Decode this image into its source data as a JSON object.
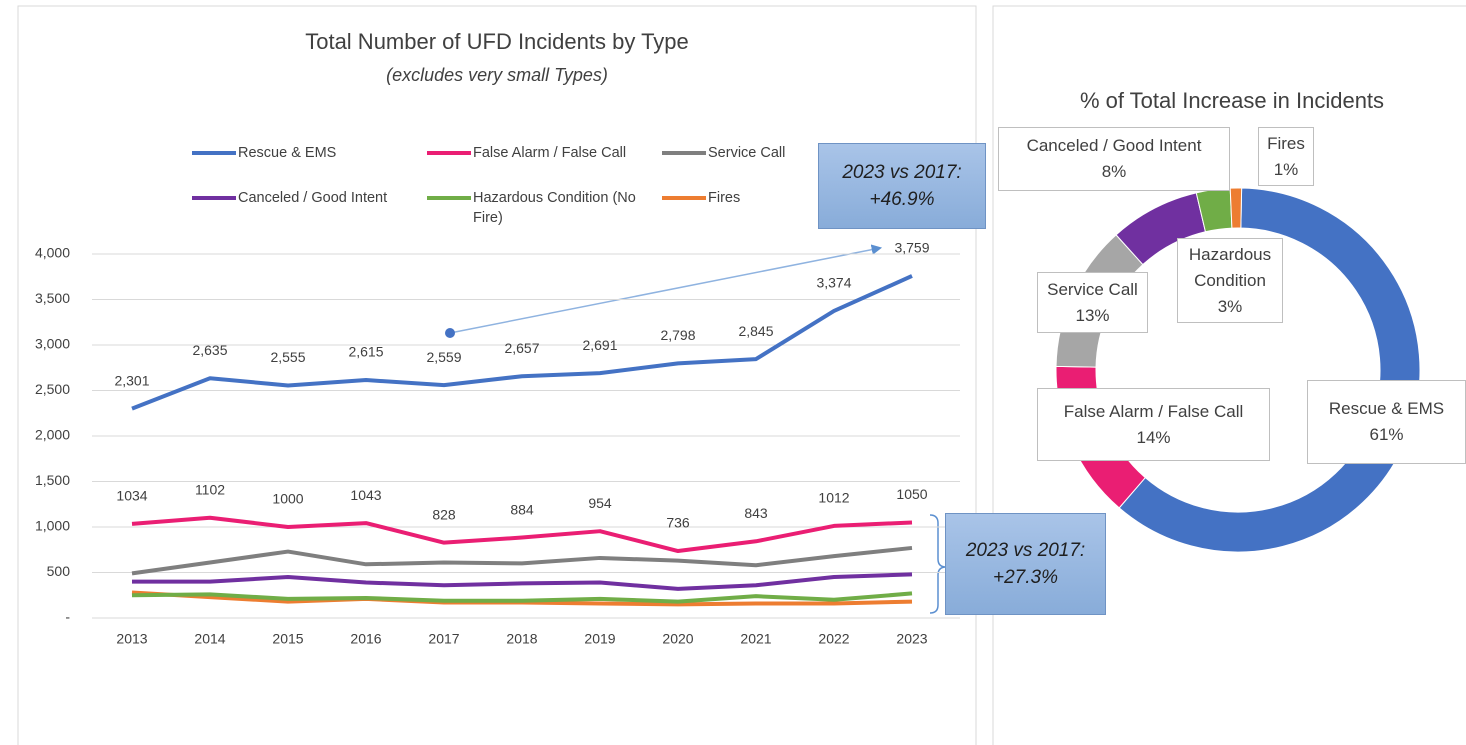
{
  "chart_data": [
    {
      "type": "line",
      "title": "Total Number of UFD Incidents by Type",
      "subtitle": "(excludes very small Types)",
      "categories": [
        "2013",
        "2014",
        "2015",
        "2016",
        "2017",
        "2018",
        "2019",
        "2020",
        "2021",
        "2022",
        "2023"
      ],
      "ylim": [
        0,
        4000
      ],
      "yticks": [
        {
          "value": 0,
          "label": "-"
        },
        500,
        {
          "value": 1000,
          "label": "1,000"
        },
        {
          "value": 1500,
          "label": "1,500"
        },
        {
          "value": 2000,
          "label": "2,000"
        },
        {
          "value": 2500,
          "label": "2,500"
        },
        {
          "value": 3000,
          "label": "3,000"
        },
        {
          "value": 3500,
          "label": "3,500"
        },
        {
          "value": 4000,
          "label": "4,000"
        }
      ],
      "grid": true,
      "series": [
        {
          "name": "Rescue & EMS",
          "color": "#4472c4",
          "labels": true,
          "values": [
            2301,
            2635,
            2555,
            2615,
            2559,
            2657,
            2691,
            2798,
            2845,
            3374,
            3759
          ],
          "value_labels": [
            "2,301",
            "2,635",
            "2,555",
            "2,615",
            "2,559",
            "2,657",
            "2,691",
            "2,798",
            "2,845",
            "3,374",
            "3,759"
          ]
        },
        {
          "name": "False Alarm / False Call",
          "color": "#ea1e73",
          "labels": true,
          "values": [
            1034,
            1102,
            1000,
            1043,
            828,
            884,
            954,
            736,
            843,
            1012,
            1050
          ]
        },
        {
          "name": "Service Call",
          "color": "#7f7f7f",
          "values": [
            490,
            610,
            730,
            590,
            610,
            600,
            660,
            630,
            580,
            680,
            770
          ]
        },
        {
          "name": "Canceled / Good Intent",
          "color": "#7030a0",
          "values": [
            400,
            400,
            450,
            390,
            360,
            380,
            390,
            320,
            360,
            450,
            480
          ]
        },
        {
          "name": "Hazardous Condition (No Fire)",
          "color": "#70ad47",
          "values": [
            250,
            260,
            210,
            220,
            190,
            190,
            210,
            180,
            240,
            200,
            270
          ]
        },
        {
          "name": "Fires",
          "color": "#ed7d31",
          "values": [
            280,
            230,
            180,
            210,
            170,
            170,
            160,
            150,
            160,
            160,
            180
          ]
        }
      ],
      "annotations": [
        {
          "text": [
            "2023 vs 2017:",
            "+46.9%"
          ]
        },
        {
          "text": [
            "2023 vs 2017:",
            "+27.3%"
          ]
        }
      ]
    },
    {
      "type": "pie",
      "title": "% of Total Increase in Incidents",
      "donut": true,
      "categories": [
        "Rescue & EMS",
        "False Alarm / False Call",
        "Service Call",
        "Canceled / Good Intent",
        "Hazardous Condition",
        "Fires"
      ],
      "colors": [
        "#4472c4",
        "#ea1e73",
        "#a6a6a6",
        "#7030a0",
        "#70ad47",
        "#ed7d31"
      ],
      "values": [
        61,
        14,
        13,
        8,
        3,
        1
      ],
      "value_labels": [
        "61%",
        "14%",
        "13%",
        "8%",
        "3%",
        "1%"
      ]
    }
  ]
}
